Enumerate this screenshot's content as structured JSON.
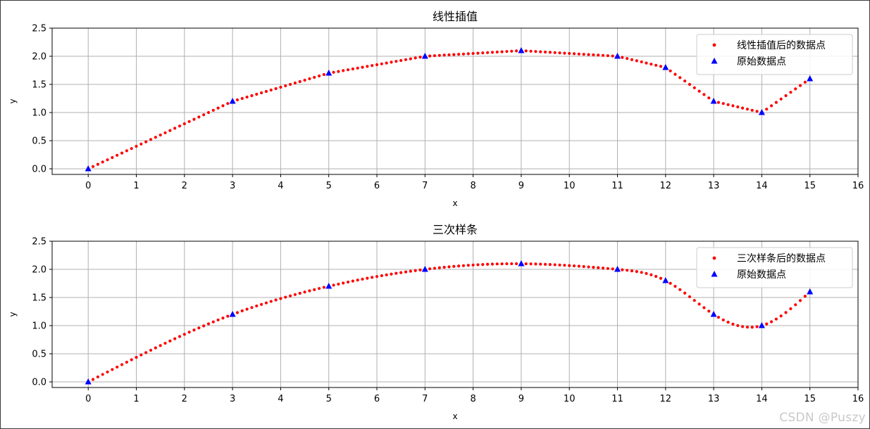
{
  "chart_data": [
    {
      "type": "scatter",
      "title": "线性插值",
      "xlabel": "x",
      "ylabel": "y",
      "xlim": [
        -0.75,
        16
      ],
      "ylim": [
        -0.1,
        2.5
      ],
      "xticks": [
        "0",
        "1",
        "2",
        "3",
        "4",
        "5",
        "6",
        "7",
        "8",
        "9",
        "10",
        "11",
        "12",
        "13",
        "14",
        "15",
        "16"
      ],
      "yticks": [
        "0.0",
        "0.5",
        "1.0",
        "1.5",
        "2.0",
        "2.5"
      ],
      "grid": true,
      "legend_position": "top-right",
      "series": [
        {
          "name": "线性插值后的数据点",
          "marker": "point",
          "color": "#ff0000",
          "x_range": [
            0,
            15
          ],
          "n_points": 151,
          "method": "linear"
        },
        {
          "name": "原始数据点",
          "marker": "triangle",
          "color": "#0000ff",
          "x": [
            0,
            3,
            5,
            7,
            9,
            11,
            12,
            13,
            14,
            15
          ],
          "y": [
            0,
            1.2,
            1.7,
            2.0,
            2.1,
            2.0,
            1.8,
            1.2,
            1.0,
            1.6
          ]
        }
      ]
    },
    {
      "type": "scatter",
      "title": "三次样条",
      "xlabel": "x",
      "ylabel": "y",
      "xlim": [
        -0.75,
        16
      ],
      "ylim": [
        -0.1,
        2.5
      ],
      "xticks": [
        "0",
        "1",
        "2",
        "3",
        "4",
        "5",
        "6",
        "7",
        "8",
        "9",
        "10",
        "11",
        "12",
        "13",
        "14",
        "15",
        "16"
      ],
      "yticks": [
        "0.0",
        "0.5",
        "1.0",
        "1.5",
        "2.0",
        "2.5"
      ],
      "grid": true,
      "legend_position": "top-right",
      "series": [
        {
          "name": "三次样条后的数据点",
          "marker": "point",
          "color": "#ff0000",
          "x_range": [
            0,
            15
          ],
          "n_points": 151,
          "method": "cubic-spline"
        },
        {
          "name": "原始数据点",
          "marker": "triangle",
          "color": "#0000ff",
          "x": [
            0,
            3,
            5,
            7,
            9,
            11,
            12,
            13,
            14,
            15
          ],
          "y": [
            0,
            1.2,
            1.7,
            2.0,
            2.1,
            2.0,
            1.8,
            1.2,
            1.0,
            1.6
          ]
        }
      ]
    }
  ],
  "watermark": "CSDN @Puszy"
}
